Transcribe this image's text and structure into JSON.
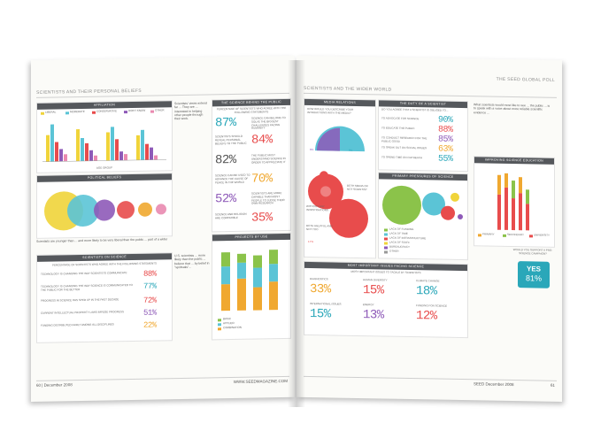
{
  "left_page": {
    "header_tag": "SCIENTISTS AND THEIR PERSONAL BELIEFS",
    "chart1": {
      "title": "AFFILIATION",
      "legend": [
        "LIBERAL",
        "MODERATE",
        "CONSERVATIVE",
        "DON'T KNOW",
        "OTHER"
      ],
      "xlabel": "AGE GROUP",
      "colors": [
        "#f0d43a",
        "#5bc4d6",
        "#e84c4c",
        "#8e5ab8",
        "#e98ab0"
      ]
    },
    "sidebar_text": "Scientists' views extend far ... They are ... interested in helping other people through their work.",
    "chart2_title": "POLITICAL BELIEFS",
    "caption_row": "Scientists are younger than ... and more likely to be very liberal than the public ... part of a wider",
    "table": {
      "title": "SCIENTISTS ON SCIENCE",
      "intro": "PERCENTAGE OF SCIENTISTS WHO AGREE WITH THE FOLLOWING STATEMENTS",
      "rows": [
        {
          "text": "TECHNOLOGY IS CHANGING THE WAY SCIENTISTS COMMUNICATE",
          "pct": "88%"
        },
        {
          "text": "TECHNOLOGY IS CHANGING THE WAY SCIENCE IS COMMUNICATED TO THE PUBLIC FOR THE BETTER",
          "pct": "77%"
        },
        {
          "text": "PROGRESS IN SCIENCE HAS SPED UP IN THE PAST DECADE",
          "pct": "72%"
        },
        {
          "text": "CURRENT INTELLECTUAL PROPERTY LAWS IMPEDE PROGRESS",
          "pct": "51%"
        },
        {
          "text": "FUNDING DISTRIBUTED FAIRLY AMONG ALL DISCIPLINES",
          "pct": "22%"
        }
      ],
      "colors": [
        "#e84c4c",
        "#2aa7b9",
        "#e84c4c",
        "#8e5ab8",
        "#f0a830"
      ]
    },
    "mid_text": "U.S. scientists ... more likely than the public ... believe that ... by belief in \"spirituals\"...",
    "stat_panel": {
      "title": "THE SCIENCE BEHIND THE PUBLIC",
      "intro": "PERCENTAGE OF SCIENTISTS WHO AGREE WITH THE FOLLOWING STATEMENTS",
      "items": [
        {
          "pct": "87%",
          "text": "SCIENCE CAN BELONG TO SOLVE THE BIGGEST CHALLENGES FACING HUMANITY",
          "color": "#2aa7b9"
        },
        {
          "pct": "84%",
          "text": "SCIENTISTS SHOULD REVEAL PERSONAL BELIEFS TO THE PUBLIC",
          "color": "#e84c4c"
        },
        {
          "pct": "82%",
          "text": "THE PUBLIC MUST UNDERSTAND SCIENCE IN ORDER TO APPRECIATE IT",
          "color": "#555555"
        },
        {
          "pct": "70%",
          "text": "SCIENCE CAN BE USED TO ADVANCE THE CAUSE OF PEACE IN THE WORLD",
          "color": "#f0a830"
        },
        {
          "pct": "52%",
          "text": "SCIENTISTS ARE MORE CAPABLE THAN MOST PEOPLE TO JUDGE THEIR OWN RESEARCH",
          "color": "#8e5ab8"
        },
        {
          "pct": "35%",
          "text": "SCIENCE AND RELIGION ARE COMPATIBLE",
          "color": "#e84c4c"
        }
      ]
    },
    "bar_panel": {
      "title": "PROJECTS BY USE",
      "legend": [
        "BASIC",
        "APPLIED",
        "COMBINATION"
      ]
    },
    "footer_left": "60 | December 2008",
    "footer_right": "WWW.SEEDMAGAZINE.COM"
  },
  "right_page": {
    "header_right": "THE SEED GLOBAL POLL",
    "header_tag": "SCIENTISTS AND THE WIDER WORLD",
    "media": {
      "title": "MEDIA RELATIONS",
      "question": "HOW WOULD YOU DESCRIBE YOUR INTERACTIONS WITH THE MEDIA?",
      "labels": [
        "BOTH MEDIA OR NOT SCIENTIST",
        "WITHOUT ANY INVESTIGATIONS",
        "BOTH HELPFUL AND NOT TOO"
      ],
      "pcts": [
        "8%",
        "9%",
        "17%"
      ]
    },
    "duty": {
      "title": "THE DUTY OF A SCIENTIST",
      "intro": "DO YOU AGREE THAT A SCIENTIST IS OBLIGED TO...",
      "rows": [
        {
          "text": "TO ADVOCATE FOR SCIENCE",
          "pct": "90%"
        },
        {
          "text": "TO EDUCATE THE PUBLIC",
          "pct": "88%"
        },
        {
          "text": "TO CONDUCT RESEARCH FOR THE PUBLIC GOOD",
          "pct": "85%"
        },
        {
          "text": "TO SPEAK OUT ON SOCIAL ISSUES",
          "pct": "63%"
        },
        {
          "text": "TO SPEND TIME ON OUTREACH",
          "pct": "55%"
        }
      ],
      "colors": [
        "#2aa7b9",
        "#e84c4c",
        "#8e5ab8",
        "#f0a830",
        "#2aa7b9"
      ]
    },
    "pressure": {
      "title": "PRIMARY PRESSURES OF SCIENCE",
      "legend": [
        "LACK OF FUNDING",
        "LACK OF TIME",
        "LACK OF INFRASTRUCTURE",
        "LACK OF STAFF",
        "BUREAUCRACY",
        "OTHER"
      ],
      "colors": [
        "#8bc34a",
        "#2aa7b9",
        "#e84c4c",
        "#f0d43a",
        "#8e5ab8",
        "#999999"
      ]
    },
    "side_text_top": "What scientists would most like to see ... the public ... is to speak with a voice about more reliable scientific evidence ...",
    "education": {
      "title": "IMPROVING SCIENCE EDUCATION",
      "legend": [
        "PRIMARY",
        "SECONDARY",
        "UNIVERSITY"
      ]
    },
    "yes_box": {
      "question": "WOULD YOU SUPPORT A PRO-SCIENCE CAMPAIGN?",
      "answer": "YES",
      "pct": "81%"
    },
    "global": {
      "title": "MOST IMPORTANT ISSUES FACING SCIENCE",
      "subtitle": "MOST IMPORTANT ISSUES TO TACKLE BY SCIENTISTS",
      "items": [
        {
          "label": "DIAGNOSTICS",
          "pct": "33%",
          "color": "#f0a830"
        },
        {
          "label": "HUMAN DIVERSITY",
          "pct": "15%",
          "color": "#e84c4c"
        },
        {
          "label": "CLIMATE CHANGE",
          "pct": "18%",
          "color": "#2aa7b9"
        },
        {
          "label": "INTERNATIONAL ISSUES",
          "pct": "15%",
          "color": "#2aa7b9"
        },
        {
          "label": "ENERGY",
          "pct": "13%",
          "color": "#8e5ab8"
        },
        {
          "label": "FUNDING FOR SCIENCE",
          "pct": "12%",
          "color": "#e84c4c"
        }
      ]
    },
    "footer_left": "SEED December 2008",
    "footer_right": "61"
  }
}
